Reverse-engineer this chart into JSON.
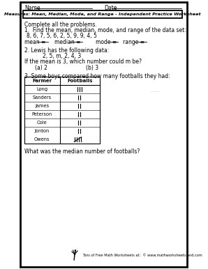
{
  "title": "Measures: Mean, Median, Mode, and Range - Independent Practice Worksheet",
  "complete": "Complete all the problems.",
  "q1_text": "1.  Find the mean, median, mode, and range of the data set:",
  "q1_data": "8, 6, 7, 5, 6, 2, 5, 9, 9, 4, 5",
  "q2_header": "2. Lewis has the following data:",
  "q2_data": "2, 5, m, 2, 4, 3",
  "q2_question": "If the mean is 3, which number could m be?",
  "q2_a": "(a) 2",
  "q2_b": "(b) 3",
  "q3_header": "3. Some boys compared how many footballs they had:",
  "table_col1": "Farmer",
  "table_col2": "Footballs",
  "table_farmers": [
    "Long",
    "Sanders",
    "James",
    "Peterson",
    "Cole",
    "Jordon",
    "Owens"
  ],
  "table_tallies": [
    3,
    2,
    2,
    2,
    2,
    2,
    5
  ],
  "q3_question": "What was the median number of footballs?",
  "footer": "Tons of Free Math Worksheets at:  © www.mathworksheetsland.com",
  "bg_color": "#ffffff",
  "text_color": "#000000"
}
